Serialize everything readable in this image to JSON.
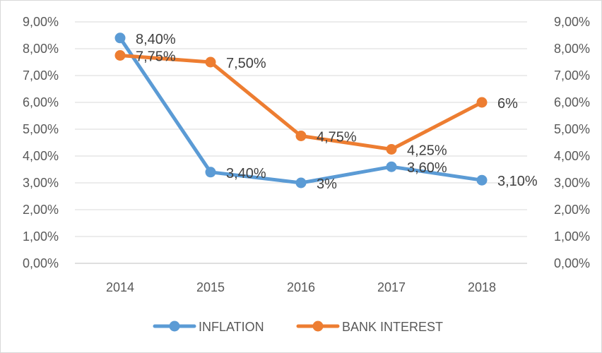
{
  "chart_data": {
    "type": "line",
    "categories": [
      "2014",
      "2015",
      "2016",
      "2017",
      "2018"
    ],
    "ylim": [
      0,
      9
    ],
    "y_ticks": [
      "0,00%",
      "1,00%",
      "2,00%",
      "3,00%",
      "4,00%",
      "5,00%",
      "6,00%",
      "7,00%",
      "8,00%",
      "9,00%"
    ],
    "secondary_y_ticks": [
      "0,00%",
      "1,00%",
      "2,00%",
      "3,00%",
      "4,00%",
      "5,00%",
      "6,00%",
      "7,00%",
      "8,00%",
      "9,00%"
    ],
    "grid": true,
    "legend_position": "bottom",
    "series": [
      {
        "name": "INFLATION",
        "color": "#5b9bd5",
        "values": [
          8.4,
          3.4,
          3.0,
          3.6,
          3.1
        ],
        "labels": [
          "8,40%",
          "3,40%",
          "3%",
          "3,60%",
          "3,10%"
        ]
      },
      {
        "name": "BANK INTEREST",
        "color": "#ed7d31",
        "values": [
          7.75,
          7.5,
          4.75,
          4.25,
          6.0
        ],
        "labels": [
          "7,75%",
          "7,50%",
          "4,75%",
          "4,25%",
          "6%"
        ]
      }
    ]
  }
}
